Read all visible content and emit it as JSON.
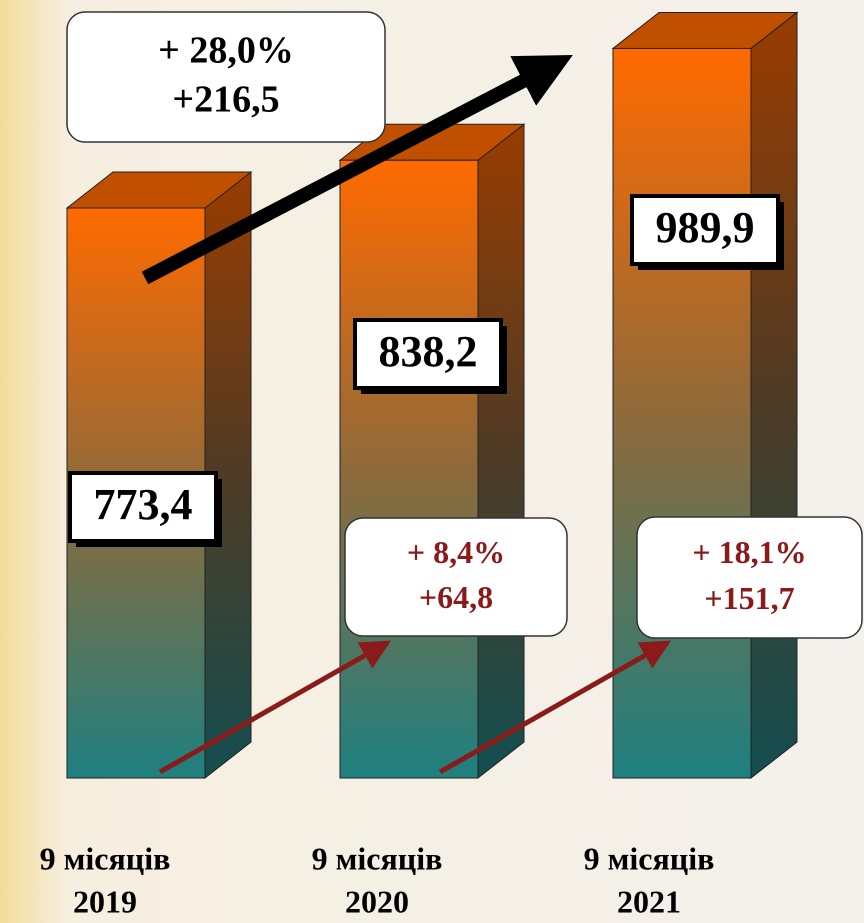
{
  "chart_data": {
    "type": "bar3d",
    "categories": [
      [
        "9 місяців",
        "2019"
      ],
      [
        "9 місяців",
        "2020"
      ],
      [
        "9 місяців",
        "2021"
      ]
    ],
    "values": [
      773.4,
      838.2,
      989.9
    ],
    "value_labels": [
      "773,4",
      "838,2",
      "989,9"
    ],
    "ylim": [
      0,
      1000
    ],
    "annotations": [
      {
        "lines": [
          "+ 28,0%",
          "+216,5"
        ],
        "color": "#000000"
      },
      {
        "lines": [
          "+ 8,4%",
          "+64,8"
        ],
        "color": "#8b1a1a"
      },
      {
        "lines": [
          "+ 18,1%",
          "+151,7"
        ],
        "color": "#8b1a1a"
      }
    ]
  }
}
